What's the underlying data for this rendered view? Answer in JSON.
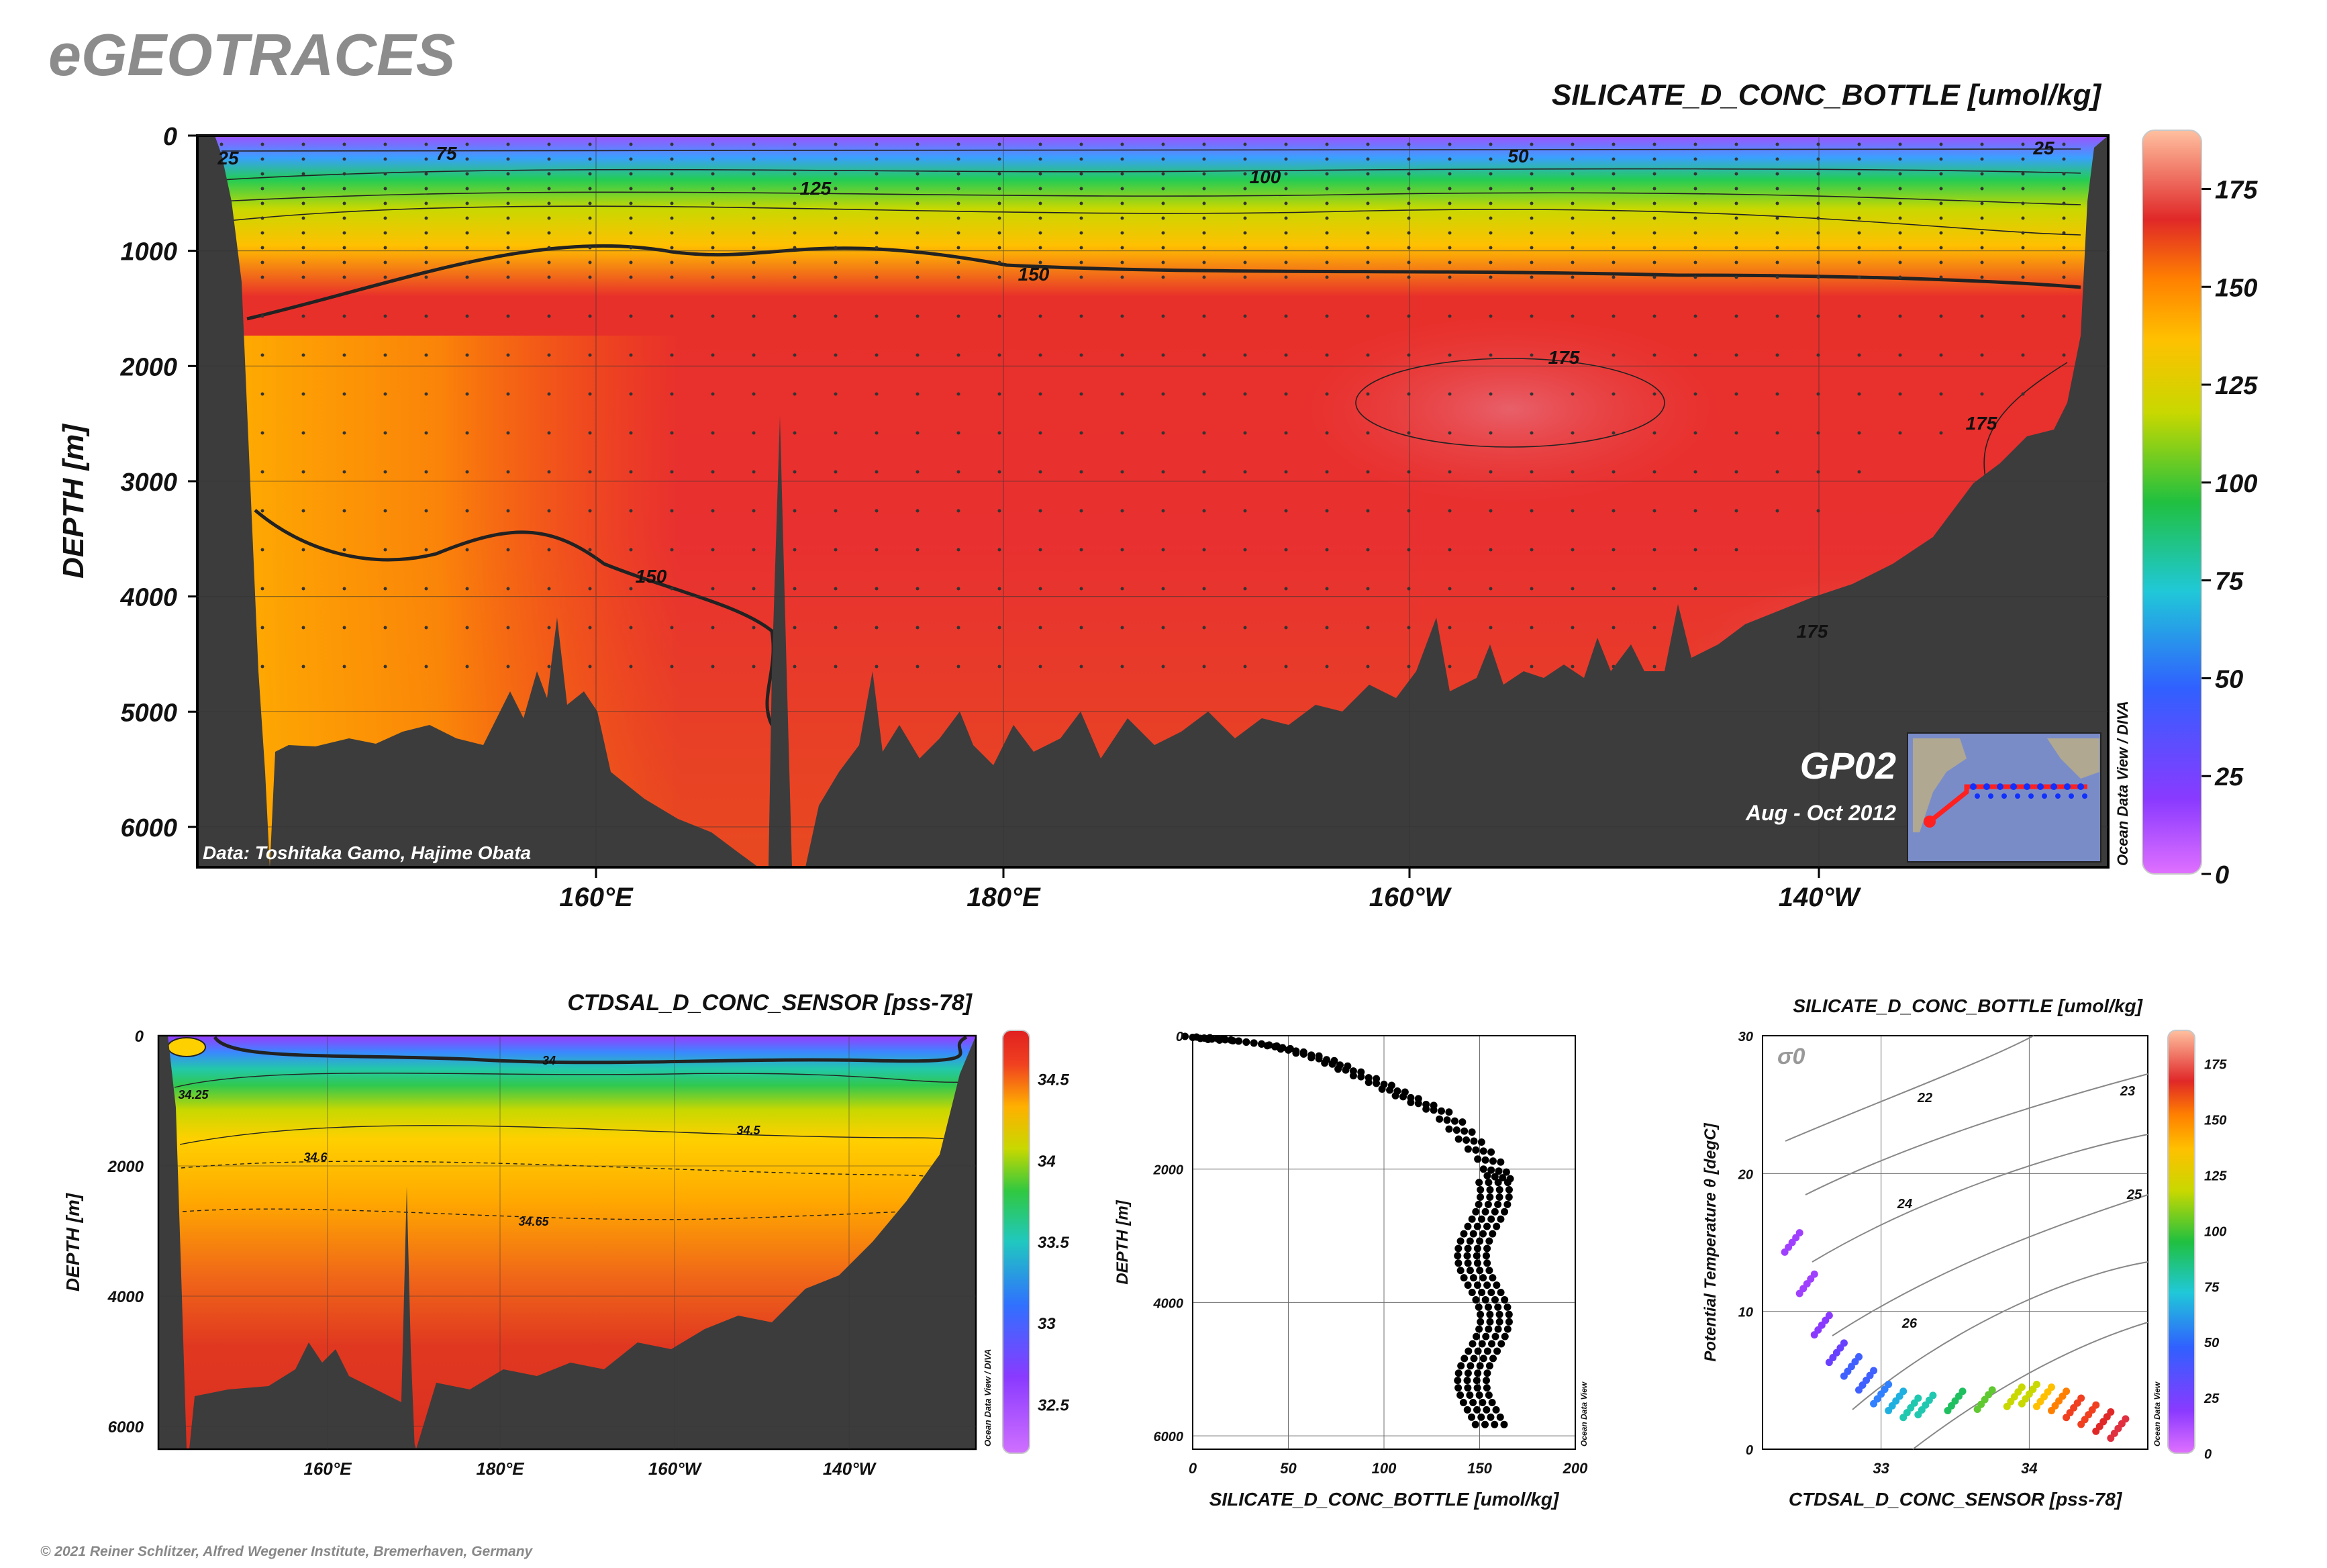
{
  "brand": "eGEOTRACES",
  "copyright": "© 2021 Reiner Schlitzer, Alfred Wegener Institute, Bremerhaven, Germany",
  "chart_data": [
    {
      "id": "main-section",
      "type": "heatmap",
      "title": "SILICATE_D_CONC_BOTTLE [umol/kg]",
      "ylabel": "DEPTH [m]",
      "y_ticks": [
        "0",
        "1000",
        "2000",
        "3000",
        "4000",
        "5000",
        "6000"
      ],
      "x_ticks": [
        "160°E",
        "180°E",
        "160°W",
        "140°W"
      ],
      "colorbar_ticks": [
        "175",
        "150",
        "125",
        "100",
        "75",
        "50",
        "25",
        "0"
      ],
      "colorbar_range": [
        0,
        190
      ],
      "contour_labels": [
        "25",
        "75",
        "50",
        "25",
        "125",
        "100",
        "150",
        "175",
        "175",
        "150",
        "175"
      ],
      "data_credit": "Data: Toshitaka Gamo, Hajime Obata",
      "section": "GP02",
      "period": "Aug - Oct 2012",
      "watermark": "Ocean Data View / DIVA"
    },
    {
      "id": "salinity-section",
      "type": "heatmap",
      "title": "CTDSAL_D_CONC_SENSOR [pss-78]",
      "ylabel": "DEPTH [m]",
      "y_ticks": [
        "0",
        "2000",
        "4000",
        "6000"
      ],
      "x_ticks": [
        "160°E",
        "180°E",
        "160°W",
        "140°W"
      ],
      "colorbar_ticks": [
        "34.5",
        "34",
        "33.5",
        "33",
        "32.5"
      ],
      "colorbar_range": [
        32.2,
        34.8
      ],
      "contour_labels": [
        "34",
        "34.25",
        "34.5",
        "34.6",
        "34.65"
      ],
      "watermark": "Ocean Data View / DIVA"
    },
    {
      "id": "profile",
      "type": "scatter",
      "xlabel": "SILICATE_D_CONC_BOTTLE [umol/kg]",
      "ylabel": "DEPTH [m]",
      "x_ticks": [
        "0",
        "50",
        "100",
        "150",
        "200"
      ],
      "y_ticks": [
        "0",
        "2000",
        "4000",
        "6000"
      ],
      "xlim": [
        0,
        200
      ],
      "ylim": [
        6200,
        0
      ],
      "watermark": "Ocean Data View",
      "series": [
        {
          "x": [
            2,
            8,
            15,
            22,
            30,
            38,
            45,
            52,
            60,
            68,
            75,
            82,
            90,
            98,
            105,
            112,
            120,
            128,
            135,
            140,
            145,
            150,
            155,
            158,
            160
          ],
          "y": [
            10,
            20,
            30,
            50,
            80,
            110,
            150,
            200,
            260,
            330,
            410,
            500,
            600,
            700,
            800,
            900,
            1000,
            1100,
            1250,
            1400,
            1550,
            1700,
            1850,
            2000,
            2100
          ]
        }
      ]
    },
    {
      "id": "ts-diagram",
      "type": "scatter",
      "title": "SILICATE_D_CONC_BOTTLE [umol/kg]",
      "xlabel": "CTDSAL_D_CONC_SENSOR [pss-78]",
      "ylabel": "Potential Temperature θ [degC]",
      "x_ticks": [
        "33",
        "34"
      ],
      "y_ticks": [
        "0",
        "10",
        "20",
        "30"
      ],
      "xlim": [
        32.2,
        34.8
      ],
      "ylim": [
        0,
        30
      ],
      "isopycnal_symbol": "σ0",
      "isopycnal_labels": [
        "22",
        "23",
        "24",
        "25",
        "26"
      ],
      "colorbar_ticks": [
        "175",
        "150",
        "125",
        "100",
        "75",
        "50",
        "25",
        "0"
      ],
      "colorbar_range": [
        0,
        190
      ],
      "watermark": "Ocean Data View",
      "series": [
        {
          "x": [
            32.4,
            32.5,
            32.6,
            32.7,
            32.8,
            32.9,
            33.0,
            33.1,
            33.2,
            33.3,
            33.5,
            33.7,
            33.9,
            34.0,
            34.1,
            34.2,
            34.3,
            34.4,
            34.5,
            34.6
          ],
          "y": [
            15.0,
            12.0,
            9.0,
            7.0,
            6.0,
            5.0,
            4.0,
            3.5,
            3.0,
            3.2,
            3.5,
            3.6,
            3.8,
            4.0,
            3.8,
            3.5,
            3.0,
            2.5,
            2.0,
            1.5
          ]
        }
      ]
    }
  ]
}
